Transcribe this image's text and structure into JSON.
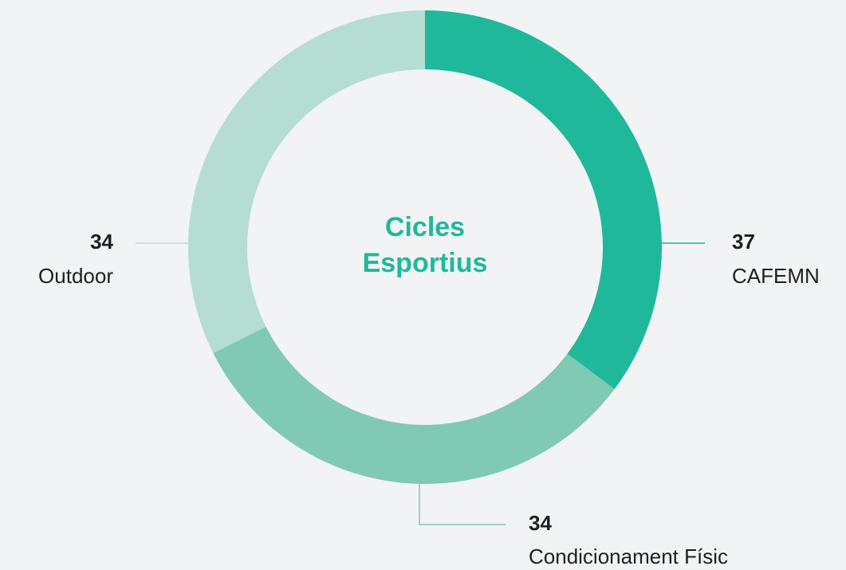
{
  "chart_data": {
    "type": "pie",
    "title": "Cicles Esportius",
    "categories": [
      "CAFEMN",
      "Condicionament Físic",
      "Outdoor"
    ],
    "values": [
      37,
      34,
      34
    ],
    "colors": [
      "#20b89a",
      "#80c9b5",
      "#b5ddd3"
    ]
  }
}
